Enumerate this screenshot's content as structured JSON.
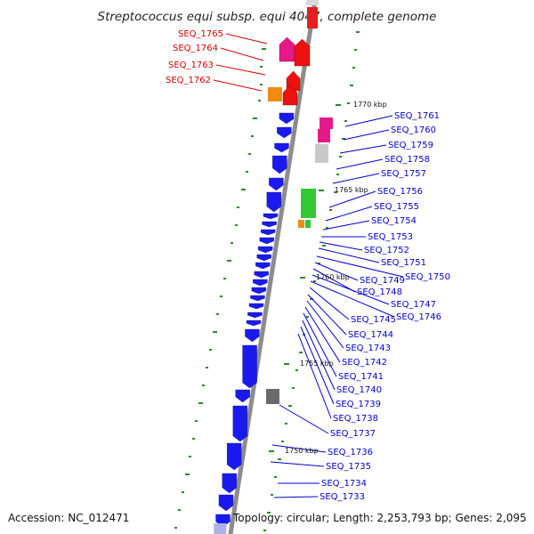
{
  "title": "Streptococcus equi subsp. equi 4047, complete genome",
  "accession": "Accession: NC_012471",
  "summary": "Topology: circular; Length: 2,253,793 bp; Genes: 2,095",
  "colors": {
    "backbone": "#8c8c8c",
    "forward_label": "#d40000",
    "reverse_label": "#0000cc",
    "gc_tick": "#2a8a2a"
  },
  "kbp_markers": [
    "1770 kbp",
    "1765 kbp",
    "1760 kbp",
    "1755 kbp",
    "1750 kbp"
  ],
  "forward_genes": [
    "SEQ_1765",
    "SEQ_1764",
    "SEQ_1763",
    "SEQ_1762"
  ],
  "reverse_genes": [
    "SEQ_1761",
    "SEQ_1760",
    "SEQ_1759",
    "SEQ_1758",
    "SEQ_1757",
    "SEQ_1756",
    "SEQ_1755",
    "SEQ_1754",
    "SEQ_1753",
    "SEQ_1752",
    "SEQ_1751",
    "SEQ_1750",
    "SEQ_1749",
    "SEQ_1748",
    "SEQ_1747",
    "SEQ_1746",
    "SEQ_1745",
    "SEQ_1744",
    "SEQ_1743",
    "SEQ_1742",
    "SEQ_1741",
    "SEQ_1740",
    "SEQ_1739",
    "SEQ_1738",
    "SEQ_1737",
    "SEQ_1736",
    "SEQ_1735",
    "SEQ_1734",
    "SEQ_1733"
  ]
}
